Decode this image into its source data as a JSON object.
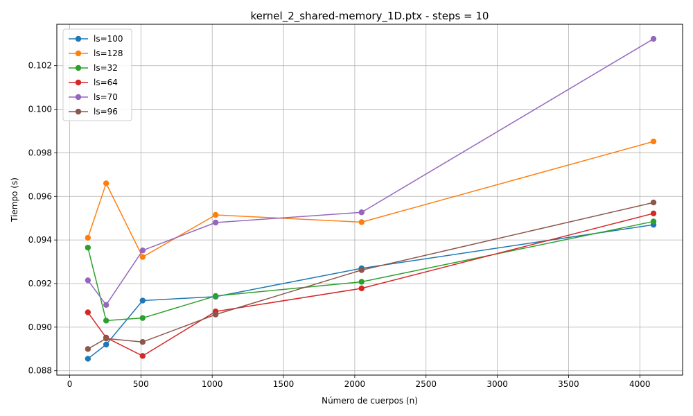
{
  "chart_data": {
    "type": "line",
    "title": "kernel_2_shared-memory_1D.ptx - steps = 10",
    "xlabel": "Número de cuerpos (n)",
    "ylabel": "Tiempo (s)",
    "xlim": [
      -90,
      4300
    ],
    "ylim": [
      0.0878,
      0.1039
    ],
    "x_ticks": [
      0,
      500,
      1000,
      1500,
      2000,
      2500,
      3000,
      3500,
      4000
    ],
    "x_tick_labels": [
      "0",
      "500",
      "1000",
      "1500",
      "2000",
      "2500",
      "3000",
      "3500",
      "4000"
    ],
    "y_ticks": [
      0.088,
      0.09,
      0.092,
      0.094,
      0.096,
      0.098,
      0.1,
      0.102
    ],
    "y_tick_labels": [
      "0.088",
      "0.090",
      "0.092",
      "0.094",
      "0.096",
      "0.098",
      "0.100",
      "0.102"
    ],
    "grid": true,
    "legend_position": "top-left",
    "x": [
      128,
      256,
      512,
      1024,
      2048,
      4096
    ],
    "series": [
      {
        "name": "ls=100",
        "color": "#1f77b4",
        "values": [
          0.08855,
          0.0892,
          0.09122,
          0.0914,
          0.0927,
          0.0947
        ]
      },
      {
        "name": "ls=128",
        "color": "#ff7f0e",
        "values": [
          0.0941,
          0.0966,
          0.09322,
          0.09515,
          0.09482,
          0.09852
        ]
      },
      {
        "name": "ls=32",
        "color": "#2ca02c",
        "values": [
          0.09365,
          0.0903,
          0.09042,
          0.09143,
          0.09208,
          0.09485
        ]
      },
      {
        "name": "ls=64",
        "color": "#d62728",
        "values": [
          0.09068,
          0.08952,
          0.08868,
          0.09072,
          0.09178,
          0.09522
        ]
      },
      {
        "name": "ls=70",
        "color": "#9467bd",
        "values": [
          0.09215,
          0.09102,
          0.09352,
          0.0948,
          0.09527,
          0.10323
        ]
      },
      {
        "name": "ls=96",
        "color": "#8c564b",
        "values": [
          0.089,
          0.08948,
          0.08932,
          0.09058,
          0.09262,
          0.09572
        ]
      }
    ]
  }
}
